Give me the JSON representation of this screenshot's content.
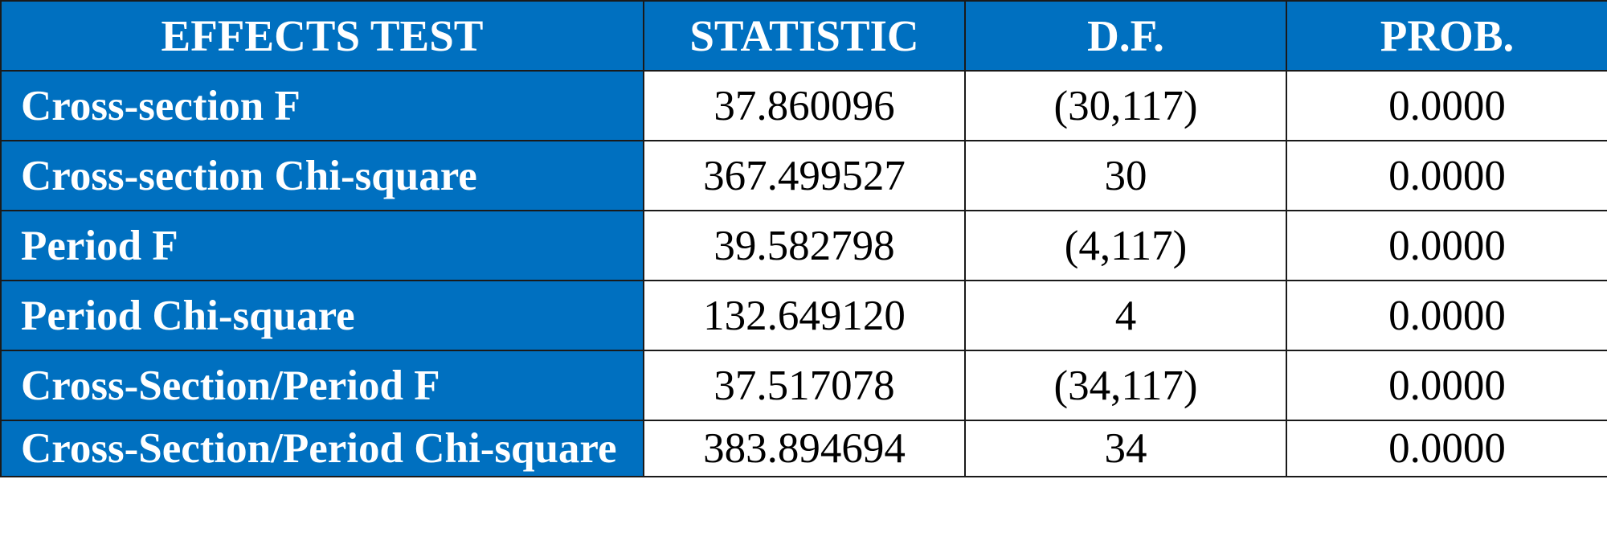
{
  "table": {
    "headers": [
      "EFFECTS TEST",
      "STATISTIC",
      "D.F.",
      "PROB."
    ],
    "rows": [
      {
        "test": "Cross-section F",
        "statistic": "37.860096",
        "df": "(30,117)",
        "prob": "0.0000"
      },
      {
        "test": "Cross-section Chi-square",
        "statistic": "367.499527",
        "df": "30",
        "prob": "0.0000"
      },
      {
        "test": "Period F",
        "statistic": "39.582798",
        "df": "(4,117)",
        "prob": "0.0000"
      },
      {
        "test": "Period Chi-square",
        "statistic": "132.649120",
        "df": "4",
        "prob": "0.0000"
      },
      {
        "test": "Cross-Section/Period F",
        "statistic": "37.517078",
        "df": "(34,117)",
        "prob": "0.0000"
      },
      {
        "test": "Cross-Section/Period Chi-square",
        "statistic": "383.894694",
        "df": "34",
        "prob": "0.0000"
      }
    ]
  },
  "colors": {
    "header_bg": "#0070c0",
    "header_text": "#ffffff",
    "cell_bg": "#ffffff",
    "cell_text": "#000000",
    "border": "#1a1a1a"
  }
}
